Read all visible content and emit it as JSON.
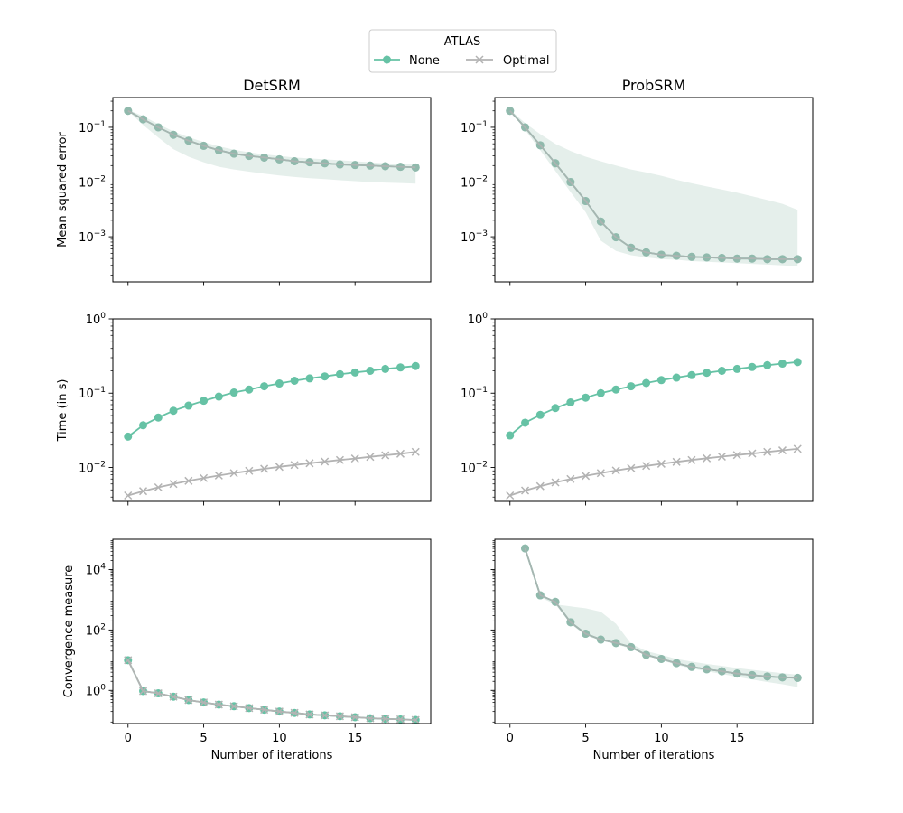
{
  "legend": {
    "title": "ATLAS",
    "entries": [
      {
        "label": "None",
        "color": "#66c2a5",
        "marker": "circle"
      },
      {
        "label": "Optimal",
        "color": "#b3b3b3",
        "marker": "x"
      }
    ]
  },
  "colors": {
    "none": "#66c2a5",
    "optimal": "#b3b3b3",
    "band": "#dce9e4"
  },
  "columns": [
    "DetSRM",
    "ProbSRM"
  ],
  "rows": [
    "Mean squared error",
    "Time (in s)",
    "Convergence measure"
  ],
  "xlabel": "Number of iterations",
  "chart_data": [
    {
      "type": "line",
      "title": "DetSRM",
      "ylabel": "Mean squared error",
      "xlabel": "",
      "yscale": "log",
      "xlim": [
        -1,
        20
      ],
      "ylim": [
        0.00015,
        0.35
      ],
      "ticks": [
        0.001,
        0.01,
        0.1
      ],
      "tick_labels": [
        "10−3",
        "10−2",
        "10−1"
      ],
      "x": [
        0,
        1,
        2,
        3,
        4,
        5,
        6,
        7,
        8,
        9,
        10,
        11,
        12,
        13,
        14,
        15,
        16,
        17,
        18,
        19
      ],
      "series": [
        {
          "name": "None",
          "values": [
            0.2,
            0.14,
            0.1,
            0.073,
            0.057,
            0.046,
            0.038,
            0.033,
            0.03,
            0.028,
            0.026,
            0.024,
            0.023,
            0.022,
            0.021,
            0.0205,
            0.02,
            0.0195,
            0.019,
            0.0185
          ]
        },
        {
          "name": "Optimal",
          "values": [
            0.2,
            0.14,
            0.1,
            0.073,
            0.057,
            0.046,
            0.038,
            0.033,
            0.03,
            0.028,
            0.026,
            0.024,
            0.023,
            0.022,
            0.021,
            0.0205,
            0.02,
            0.0195,
            0.019,
            0.0185
          ]
        }
      ],
      "band": {
        "lower": [
          0.2,
          0.11,
          0.065,
          0.04,
          0.029,
          0.023,
          0.019,
          0.017,
          0.0155,
          0.0142,
          0.0132,
          0.0124,
          0.0118,
          0.0113,
          0.0108,
          0.0104,
          0.01,
          0.0098,
          0.0096,
          0.0094
        ],
        "upper": [
          0.21,
          0.16,
          0.115,
          0.084,
          0.066,
          0.054,
          0.045,
          0.039,
          0.035,
          0.032,
          0.03,
          0.028,
          0.027,
          0.026,
          0.025,
          0.024,
          0.023,
          0.022,
          0.0215,
          0.021
        ]
      }
    },
    {
      "type": "line",
      "title": "ProbSRM",
      "ylabel": "",
      "xlabel": "",
      "yscale": "log",
      "xlim": [
        -1,
        20
      ],
      "ylim": [
        0.00015,
        0.35
      ],
      "ticks": [
        0.001,
        0.01,
        0.1
      ],
      "tick_labels": [
        "10−3",
        "10−2",
        "10−1"
      ],
      "x": [
        0,
        1,
        2,
        3,
        4,
        5,
        6,
        7,
        8,
        9,
        10,
        11,
        12,
        13,
        14,
        15,
        16,
        17,
        18,
        19
      ],
      "series": [
        {
          "name": "None",
          "values": [
            0.2,
            0.1,
            0.047,
            0.022,
            0.01,
            0.0045,
            0.0019,
            0.00098,
            0.00063,
            0.00052,
            0.00047,
            0.00045,
            0.00043,
            0.00042,
            0.00041,
            0.0004,
            0.0004,
            0.00039,
            0.00039,
            0.00039
          ]
        },
        {
          "name": "Optimal",
          "values": [
            0.2,
            0.1,
            0.047,
            0.022,
            0.01,
            0.0045,
            0.0019,
            0.00098,
            0.00063,
            0.00052,
            0.00047,
            0.00045,
            0.00043,
            0.00042,
            0.00041,
            0.0004,
            0.0004,
            0.00039,
            0.00039,
            0.00039
          ]
        }
      ],
      "band": {
        "lower": [
          0.2,
          0.09,
          0.038,
          0.016,
          0.0066,
          0.0028,
          0.00085,
          0.00055,
          0.00046,
          0.00042,
          0.00039,
          0.00038,
          0.00036,
          0.00035,
          0.00034,
          0.00033,
          0.00032,
          0.00031,
          0.0003,
          0.00029
        ],
        "upper": [
          0.21,
          0.12,
          0.075,
          0.05,
          0.037,
          0.029,
          0.024,
          0.02,
          0.017,
          0.015,
          0.013,
          0.011,
          0.0095,
          0.0083,
          0.0073,
          0.0064,
          0.0055,
          0.0047,
          0.004,
          0.0031
        ]
      }
    },
    {
      "type": "line",
      "title": "",
      "ylabel": "Time (in s)",
      "xlabel": "",
      "yscale": "log",
      "xlim": [
        -1,
        20
      ],
      "ylim": [
        0.0035,
        1.0
      ],
      "ticks": [
        0.01,
        0.1,
        1
      ],
      "tick_labels": [
        "10−2",
        "10−1",
        "100"
      ],
      "x": [
        0,
        1,
        2,
        3,
        4,
        5,
        6,
        7,
        8,
        9,
        10,
        11,
        12,
        13,
        14,
        15,
        16,
        17,
        18,
        19
      ],
      "series": [
        {
          "name": "None",
          "values": [
            0.026,
            0.037,
            0.047,
            0.058,
            0.068,
            0.079,
            0.09,
            0.102,
            0.112,
            0.124,
            0.135,
            0.147,
            0.158,
            0.168,
            0.18,
            0.19,
            0.2,
            0.212,
            0.222,
            0.232
          ]
        },
        {
          "name": "Optimal",
          "values": [
            0.0042,
            0.0048,
            0.0054,
            0.006,
            0.0066,
            0.0072,
            0.0078,
            0.0084,
            0.009,
            0.0096,
            0.0102,
            0.0108,
            0.0114,
            0.012,
            0.0126,
            0.0132,
            0.0139,
            0.0146,
            0.0153,
            0.0162
          ]
        }
      ]
    },
    {
      "type": "line",
      "title": "",
      "ylabel": "",
      "xlabel": "",
      "yscale": "log",
      "xlim": [
        -1,
        20
      ],
      "ylim": [
        0.0035,
        1.0
      ],
      "ticks": [
        0.01,
        0.1,
        1
      ],
      "tick_labels": [
        "10−2",
        "10−1",
        "100"
      ],
      "x": [
        0,
        1,
        2,
        3,
        4,
        5,
        6,
        7,
        8,
        9,
        10,
        11,
        12,
        13,
        14,
        15,
        16,
        17,
        18,
        19
      ],
      "series": [
        {
          "name": "None",
          "values": [
            0.027,
            0.04,
            0.051,
            0.063,
            0.075,
            0.087,
            0.1,
            0.112,
            0.124,
            0.137,
            0.15,
            0.162,
            0.175,
            0.188,
            0.2,
            0.212,
            0.225,
            0.238,
            0.25,
            0.262
          ]
        },
        {
          "name": "Optimal",
          "values": [
            0.0042,
            0.0049,
            0.0056,
            0.0063,
            0.007,
            0.0077,
            0.0084,
            0.0091,
            0.0098,
            0.0105,
            0.0112,
            0.0119,
            0.0126,
            0.0133,
            0.014,
            0.0147,
            0.0154,
            0.0162,
            0.017,
            0.0178
          ]
        }
      ]
    },
    {
      "type": "line",
      "title": "",
      "ylabel": "Convergence measure",
      "xlabel": "Number of iterations",
      "yscale": "log",
      "xlim": [
        -1,
        20
      ],
      "ylim": [
        0.08,
        100000
      ],
      "ticks": [
        1,
        100,
        10000
      ],
      "tick_labels": [
        "100",
        "102",
        "104"
      ],
      "x": [
        0,
        1,
        2,
        3,
        4,
        5,
        6,
        7,
        8,
        9,
        10,
        11,
        12,
        13,
        14,
        15,
        16,
        17,
        18,
        19
      ],
      "series": [
        {
          "name": "None",
          "values": [
            10,
            0.95,
            0.8,
            0.62,
            0.48,
            0.4,
            0.34,
            0.3,
            0.26,
            0.23,
            0.2,
            0.18,
            0.16,
            0.15,
            0.14,
            0.13,
            0.12,
            0.115,
            0.11,
            0.105
          ]
        },
        {
          "name": "Optimal",
          "values": [
            10,
            0.95,
            0.8,
            0.62,
            0.48,
            0.4,
            0.34,
            0.3,
            0.26,
            0.23,
            0.2,
            0.18,
            0.16,
            0.15,
            0.14,
            0.13,
            0.12,
            0.115,
            0.11,
            0.105
          ]
        }
      ]
    },
    {
      "type": "line",
      "title": "",
      "ylabel": "",
      "xlabel": "Number of iterations",
      "yscale": "log",
      "xlim": [
        -1,
        20
      ],
      "ylim": [
        0.08,
        100000
      ],
      "ticks": [
        1,
        100,
        10000
      ],
      "tick_labels": [
        "",
        "",
        ""
      ],
      "x": [
        1,
        2,
        3,
        4,
        5,
        6,
        7,
        8,
        9,
        10,
        11,
        12,
        13,
        14,
        15,
        16,
        17,
        18,
        19
      ],
      "series": [
        {
          "name": "None",
          "values": [
            50000,
            1400,
            850,
            180,
            75,
            48,
            37,
            27,
            15,
            11,
            8,
            6,
            5,
            4.3,
            3.6,
            3.2,
            2.9,
            2.7,
            2.6
          ]
        },
        {
          "name": "Optimal",
          "values": [
            50000,
            1400,
            850,
            180,
            75,
            48,
            37,
            27,
            15,
            11,
            8,
            6,
            5,
            4.3,
            3.6,
            3.2,
            2.9,
            2.7,
            2.6
          ]
        }
      ],
      "band": {
        "lower": [
          45000,
          1200,
          700,
          160,
          65,
          45,
          34,
          24,
          14,
          10,
          7,
          5.3,
          4.3,
          3.5,
          2.8,
          2.3,
          1.9,
          1.6,
          1.3
        ],
        "upper": [
          55000,
          1800,
          700,
          600,
          520,
          400,
          160,
          35,
          20,
          15,
          11,
          9,
          7.5,
          6.5,
          5.5,
          4.8,
          4.2,
          3.7,
          3.3
        ]
      }
    }
  ]
}
